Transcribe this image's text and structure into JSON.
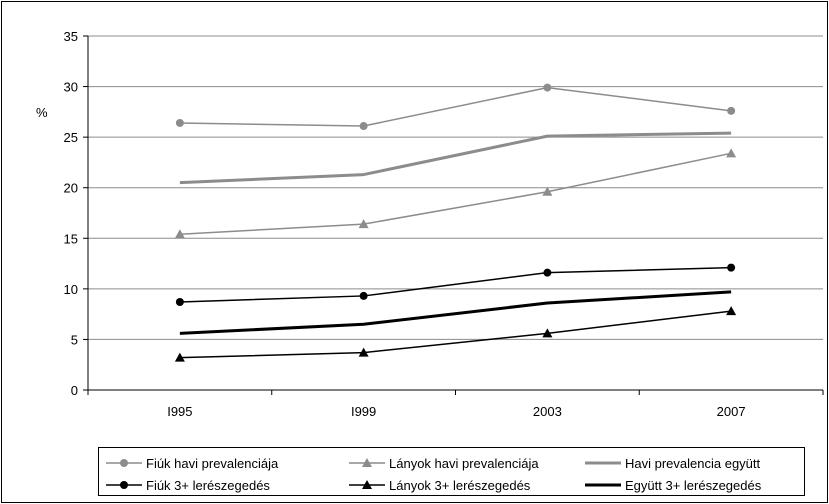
{
  "chart_data": {
    "type": "line",
    "categories": [
      "I995",
      "I999",
      "2003",
      "2007"
    ],
    "ylabel": "%",
    "ylim": [
      0,
      35
    ],
    "yticks": [
      0,
      5,
      10,
      15,
      20,
      25,
      30,
      35
    ],
    "grid": "horizontal",
    "legend_position": "bottom",
    "series": [
      {
        "name": "Fiúk havi prevalenciája",
        "values": [
          26.4,
          26.1,
          29.9,
          27.6
        ],
        "color": "#8c8c8c",
        "marker": "circle",
        "width": 1.5
      },
      {
        "name": "Lányok havi prevalenciája",
        "values": [
          15.4,
          16.4,
          19.6,
          23.4
        ],
        "color": "#8c8c8c",
        "marker": "triangle",
        "width": 1.5
      },
      {
        "name": "Havi prevalencia együtt",
        "values": [
          20.5,
          21.3,
          25.1,
          25.4
        ],
        "color": "#8c8c8c",
        "marker": "none",
        "width": 3
      },
      {
        "name": "Fiúk 3+ lerészegedés",
        "values": [
          8.7,
          9.3,
          11.6,
          12.1
        ],
        "color": "#000000",
        "marker": "circle",
        "width": 1.5
      },
      {
        "name": "Lányok 3+ lerészegedés",
        "values": [
          3.2,
          3.7,
          5.6,
          7.8
        ],
        "color": "#000000",
        "marker": "triangle",
        "width": 1.5
      },
      {
        "name": "Együtt 3+ lerészegedés",
        "values": [
          5.6,
          6.5,
          8.6,
          9.7
        ],
        "color": "#000000",
        "marker": "none",
        "width": 3
      }
    ]
  }
}
